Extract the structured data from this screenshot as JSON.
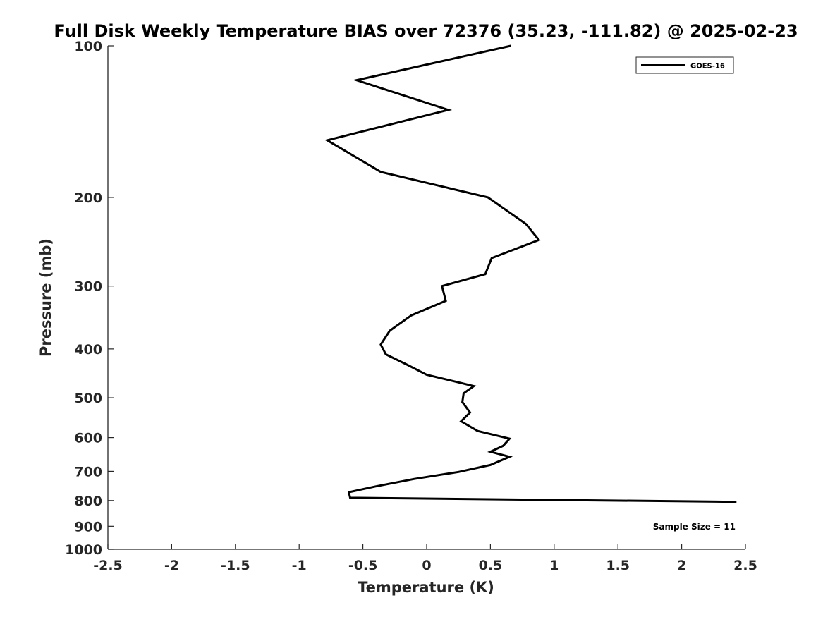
{
  "chart_data": {
    "type": "line",
    "title": "Full Disk Weekly Temperature BIAS over 72376 (35.23, -111.82) @ 2025-02-23",
    "xlabel": "Temperature (K)",
    "ylabel": "Pressure (mb)",
    "xlim": [
      -2.5,
      2.5
    ],
    "ylim": [
      1000,
      100
    ],
    "y_scale": "log",
    "y_inverted": true,
    "x_ticks": [
      "-2.5",
      "-2",
      "-1.5",
      "-1",
      "-0.5",
      "0",
      "0.5",
      "1",
      "1.5",
      "2",
      "2.5"
    ],
    "y_ticks": [
      "100",
      "200",
      "300",
      "400",
      "500",
      "600",
      "700",
      "800",
      "900",
      "1000"
    ],
    "grid": false,
    "legend_position": "top-right",
    "line_color": "#000000",
    "series": [
      {
        "name": "GOES-16",
        "points": [
          {
            "x": 0.66,
            "p": 100
          },
          {
            "x": -0.55,
            "p": 117
          },
          {
            "x": 0.17,
            "p": 134
          },
          {
            "x": -0.78,
            "p": 154
          },
          {
            "x": -0.36,
            "p": 178
          },
          {
            "x": 0.48,
            "p": 200
          },
          {
            "x": 0.78,
            "p": 226
          },
          {
            "x": 0.88,
            "p": 243
          },
          {
            "x": 0.51,
            "p": 264
          },
          {
            "x": 0.46,
            "p": 284
          },
          {
            "x": 0.12,
            "p": 300
          },
          {
            "x": 0.15,
            "p": 321
          },
          {
            "x": -0.12,
            "p": 343
          },
          {
            "x": -0.29,
            "p": 368
          },
          {
            "x": -0.36,
            "p": 392
          },
          {
            "x": -0.32,
            "p": 410
          },
          {
            "x": -0.16,
            "p": 429
          },
          {
            "x": 0.0,
            "p": 450
          },
          {
            "x": 0.37,
            "p": 474
          },
          {
            "x": 0.29,
            "p": 490
          },
          {
            "x": 0.28,
            "p": 510
          },
          {
            "x": 0.34,
            "p": 535
          },
          {
            "x": 0.27,
            "p": 557
          },
          {
            "x": 0.4,
            "p": 582
          },
          {
            "x": 0.65,
            "p": 603
          },
          {
            "x": 0.6,
            "p": 623
          },
          {
            "x": 0.5,
            "p": 640
          },
          {
            "x": 0.65,
            "p": 655
          },
          {
            "x": 0.5,
            "p": 680
          },
          {
            "x": 0.25,
            "p": 702
          },
          {
            "x": -0.1,
            "p": 725
          },
          {
            "x": -0.4,
            "p": 750
          },
          {
            "x": -0.61,
            "p": 770
          },
          {
            "x": -0.6,
            "p": 790
          },
          {
            "x": 2.43,
            "p": 805
          }
        ]
      }
    ],
    "annotation": "Sample Size = 11"
  }
}
